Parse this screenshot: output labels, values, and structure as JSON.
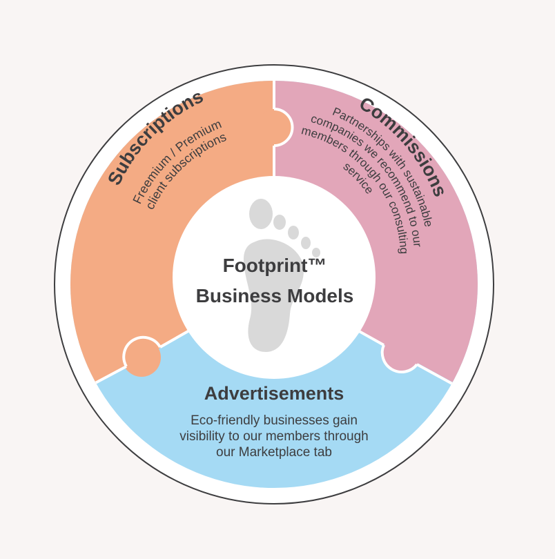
{
  "center": {
    "title_line1": "Footprint™",
    "title_line2": "Business Models"
  },
  "segments": {
    "subscriptions": {
      "title": "Subscriptions",
      "desc_line1": "Freemium / Premium",
      "desc_line2": "client subscriptions",
      "color": "#f4ab84"
    },
    "commissions": {
      "title": "Commissions",
      "desc_line1": "Partnerships with sustainable",
      "desc_line2": "companies we recommend to our",
      "desc_line3": "members through our consulting",
      "desc_line4": "service",
      "color": "#e2a6b9"
    },
    "advertisements": {
      "title": "Advertisements",
      "desc_line1": "Eco-friendly businesses gain",
      "desc_line2": "visibility to our members through",
      "desc_line3": "our Marketplace tab",
      "color": "#a5daf4"
    }
  },
  "icons": {
    "center_icon": "footprint-icon"
  },
  "colors": {
    "background": "#f9f5f4",
    "ring_stroke": "#3d3d3f",
    "text": "#3d3d3f",
    "footprint": "#d9d9d9"
  }
}
